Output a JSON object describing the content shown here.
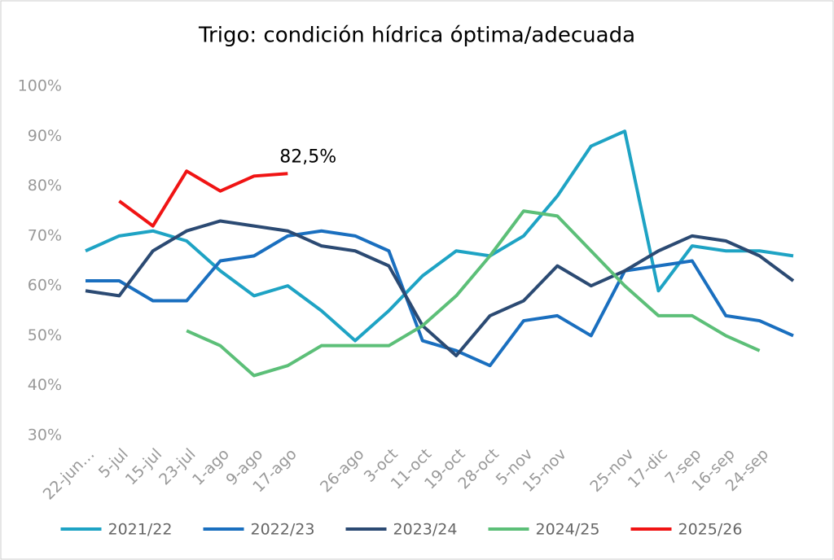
{
  "chart_data": {
    "type": "line",
    "title": "Trigo: condición hídrica óptima/adecuada",
    "categories": [
      "22-jun…",
      "5-jul",
      "15-jul",
      "23-jul",
      "1-ago",
      "9-ago",
      "17-ago",
      null,
      "26-ago",
      "3-oct",
      "11-oct",
      "19-oct",
      "28-oct",
      "5-nov",
      "15-nov",
      null,
      "25-nov",
      "17-dic",
      "7-sep",
      "16-sep",
      "24-sep",
      null
    ],
    "ylim": [
      30,
      100
    ],
    "yticks": [
      {
        "value": 30,
        "label": "30%"
      },
      {
        "value": 40,
        "label": "40%"
      },
      {
        "value": 50,
        "label": "50%"
      },
      {
        "value": 60,
        "label": "60%"
      },
      {
        "value": 70,
        "label": "70%"
      },
      {
        "value": 80,
        "label": "80%"
      },
      {
        "value": 90,
        "label": "90%"
      },
      {
        "value": 100,
        "label": "100%"
      }
    ],
    "legend": "bottom",
    "series": [
      {
        "name": "2021/22",
        "color": "#1ea3c4",
        "values": [
          67,
          70,
          71,
          69,
          63,
          58,
          60,
          55,
          49,
          55,
          62,
          67,
          66,
          70,
          78,
          88,
          91,
          59,
          68,
          67,
          67,
          66
        ]
      },
      {
        "name": "2022/23",
        "color": "#1a6fbf",
        "values": [
          61,
          61,
          57,
          57,
          65,
          66,
          70,
          71,
          70,
          67,
          49,
          47,
          44,
          53,
          54,
          50,
          63,
          64,
          65,
          54,
          53,
          50
        ]
      },
      {
        "name": "2023/24",
        "color": "#2b4a73",
        "values": [
          59,
          58,
          67,
          71,
          73,
          72,
          71,
          68,
          67,
          64,
          52,
          46,
          54,
          57,
          64,
          60,
          63,
          67,
          70,
          69,
          66,
          61
        ]
      },
      {
        "name": "2024/25",
        "color": "#5cbf78",
        "values": [
          null,
          null,
          null,
          51,
          48,
          42,
          44,
          48,
          48,
          48,
          52,
          58,
          66,
          75,
          74,
          67,
          60,
          54,
          54,
          50,
          47,
          null
        ]
      },
      {
        "name": "2025/26",
        "color": "#f01414",
        "values": [
          null,
          77,
          72,
          83,
          79,
          82,
          82.5,
          null,
          null,
          null,
          null,
          null,
          null,
          null,
          null,
          null,
          null,
          null,
          null,
          null,
          null,
          null
        ],
        "value_labels": [
          null,
          null,
          null,
          null,
          null,
          null,
          "82,5%",
          null,
          null,
          null,
          null,
          null,
          null,
          null,
          null,
          null,
          null,
          null,
          null,
          null,
          null,
          null
        ]
      }
    ]
  }
}
